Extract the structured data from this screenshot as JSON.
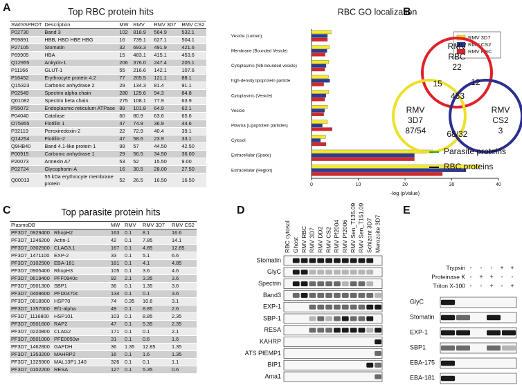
{
  "panel_labels": [
    "A",
    "B",
    "C",
    "D",
    "E"
  ],
  "table_a": {
    "title": "Top RBC protein hits",
    "headers": [
      "SWISSPROT",
      "Description",
      "MW",
      "RMV",
      "RMV 3D7",
      "RMV CS2"
    ],
    "rows": [
      [
        "P02730",
        "Band 3",
        "102",
        "818.9",
        "564.9",
        "532.1"
      ],
      [
        "P69891",
        "HBB, HBD HBE HBG",
        "16",
        "739.1",
        "627.1",
        "504.1"
      ],
      [
        "P27105",
        "Stomatin",
        "32",
        "693.3",
        "491.9",
        "421.6"
      ],
      [
        "P69905",
        "HBA",
        "15",
        "483.1",
        "415.1",
        "453.6"
      ],
      [
        "Q12955",
        "Ankyrin-1",
        "206",
        "376.0",
        "247.4",
        "205.1"
      ],
      [
        "P11166",
        "GLUT-1",
        "55",
        "216.6",
        "142.1",
        "107.6"
      ],
      [
        "P16452",
        "Erythrocyte protein 4.2",
        "77",
        "205.5",
        "121.1",
        "88.1"
      ],
      [
        "Q15323",
        "Carbonic anhydrase 2",
        "29",
        "134.3",
        "81.4",
        "91.1"
      ],
      [
        "P02549",
        "Spectrin alpha chain",
        "280",
        "129.6",
        "94.3",
        "84.8"
      ],
      [
        "Q01082",
        "Spectrin beta chain",
        "275",
        "108.1",
        "77.9",
        "63.9"
      ],
      [
        "P55072",
        "Endoplasmic reticulum ATPase",
        "89",
        "101.8",
        "64.9",
        "62.1"
      ],
      [
        "P04040",
        "Catalase",
        "60",
        "80.9",
        "63.6",
        "65.6"
      ],
      [
        "O75955",
        "Flotillin 1",
        "47",
        "74.9",
        "36.9",
        "44.6"
      ],
      [
        "P32119",
        "Peroxiredoxin-2",
        "22",
        "72.9",
        "40.4",
        "39.1"
      ],
      [
        "Q14254",
        "Flotillin-2",
        "47",
        "58.6",
        "23.9",
        "33.1"
      ],
      [
        "Q9HB40",
        "Band 4.1-like protein 1",
        "99",
        "57",
        "44.50",
        "42.50"
      ],
      [
        "P00915",
        "Carbonic anhydrase 1",
        "29",
        "56.5",
        "34.50",
        "36.00"
      ],
      [
        "P20073",
        "Annexin A7",
        "53",
        "52",
        "15.50",
        "9.00"
      ],
      [
        "P02724",
        "Glycophorin-A",
        "16",
        "30.5",
        "28.00",
        "27.50"
      ],
      [
        "Q00013",
        "55 kDa erythrocyte membrane protein",
        "52",
        "26.5",
        "16.50",
        "16.50"
      ]
    ]
  },
  "chart_data": {
    "type": "hbar",
    "title": "RBC GO localization",
    "x_label": "-log (pValue)",
    "categories": [
      "Vesicle (Lumen)",
      "Membrane (Bounded Vesicle)",
      "Cytoplasmic (Mb-bounded vesicle)",
      "high-density lipoprotein particle",
      "Cytoplasmic (Vesicle)",
      "Vesicle",
      "Plasma (Lipoprotein particles)",
      "Cytosol",
      "Extracellular (Space)",
      "Extracellular (Region)"
    ],
    "series": [
      {
        "name": "RMV 3D7",
        "color": "#f3ea2a",
        "values": [
          4.2,
          3.8,
          3.7,
          3.6,
          3.7,
          3.4,
          3.4,
          3.0,
          26,
          36
        ]
      },
      {
        "name": "RMV CS2",
        "color": "#2e3a96",
        "values": [
          3.4,
          3.3,
          3.1,
          3.9,
          3.1,
          2.8,
          2.3,
          1.9,
          22,
          33
        ]
      },
      {
        "name": "RMV RBC",
        "color": "#d8262c",
        "values": [
          3.4,
          2.9,
          2.8,
          2.6,
          2.8,
          2.6,
          4.4,
          3.1,
          22,
          28
        ]
      }
    ],
    "xlim": [
      0,
      40
    ],
    "xticks": [
      0,
      10,
      20,
      30,
      40
    ],
    "legend": "upper right"
  },
  "venn": {
    "rbc": {
      "lines": [
        "RMV",
        "RBC"
      ],
      "count": "22"
    },
    "p3d7": {
      "lines": [
        "RMV",
        "3D7"
      ],
      "count": "87/",
      "parasite_count": "54"
    },
    "cs2": {
      "lines": [
        "RMV",
        "CS2"
      ],
      "parasite_count": "3"
    },
    "rbc_3d7": "15",
    "all": "453",
    "rbc_cs2": "12",
    "p3d7_cs2": "68/",
    "p3d7_cs2_parasite": "32",
    "legend": [
      "Parasite proteins",
      "RBC proteins"
    ]
  },
  "table_c": {
    "title": "Top parasite protein hits",
    "headers": [
      "PlasmoDB",
      "MW",
      "RMV",
      "RMV 3D7",
      "RMV CS2"
    ],
    "rows": [
      [
        "PF3D7_0929400",
        "RhopH2",
        "163",
        "0.1",
        "8.1",
        "16.6"
      ],
      [
        "PF3D7_1246200",
        "Actin-1",
        "42",
        "0.1",
        "7.85",
        "14.1"
      ],
      [
        "PF3D7_0302500",
        "CLAG3.1",
        "167",
        "0.1",
        "4.85",
        "12.85"
      ],
      [
        "PF3D7_1471100",
        "EXP-2",
        "33",
        "0.1",
        "5.1",
        "6.6"
      ],
      [
        "PF3D7_0102500",
        "EBA-181",
        "181",
        "0.1",
        "4.1",
        "4.85"
      ],
      [
        "PF3D7_0905400",
        "RhopH3",
        "105",
        "0.1",
        "3.6",
        "4.6"
      ],
      [
        "PF3D7_0619400",
        "PFF0940c",
        "92",
        "2.1",
        "3.35",
        "3.6"
      ],
      [
        "PF3D7_0501300",
        "SBP1",
        "36",
        "0.1",
        "1.35",
        "3.6"
      ],
      [
        "PF3D7_0409600",
        "PFD0470c",
        "134",
        "0.1",
        "0.1",
        "3.6"
      ],
      [
        "PF3D7_0818900",
        "HSP70",
        "74",
        "0.35",
        "10.6",
        "3.1"
      ],
      [
        "PF3D7_1357000",
        "Ef1-alpha",
        "49",
        "0.1",
        "8.85",
        "2.6"
      ],
      [
        "PF3D7_1116800",
        "HSP101",
        "103",
        "0.1",
        "8.85",
        "2.35"
      ],
      [
        "PF3D7_0501600",
        "RAP2",
        "47",
        "0.1",
        "5.35",
        "2.35"
      ],
      [
        "PF3D7_0220800",
        "CLAG2",
        "171",
        "0.1",
        "0.1",
        "2.1"
      ],
      [
        "PF3D7_0501000",
        "PFE0050w",
        "31",
        "0.1",
        "0.6",
        "1.6"
      ],
      [
        "PF3D7_1462800",
        "GAPDH",
        "36",
        "1.35",
        "12.85",
        "1.35"
      ],
      [
        "PF3D7_1353200",
        "MAHRP2",
        "16",
        "0.1",
        "1.6",
        "1.35"
      ],
      [
        "PF3D7_1325900",
        "MAL13P1.140",
        "326",
        "0.1",
        "0.1",
        "1.1"
      ],
      [
        "PF3D7_0102200",
        "RESA",
        "127",
        "0.1",
        "5.35",
        "0.6"
      ]
    ]
  },
  "blot_d": {
    "lanes": [
      "RBC cytosol",
      "Ghost",
      "RMV RBC",
      "RMV 3D7",
      "RMV DD2",
      "RMV CS2",
      "RMV Pf2004",
      "RMV Pf2006",
      "RMV Sen_T135.09",
      "RMV Sen_T151.09",
      "Schizont 3D7",
      "Merozoite 3D7"
    ],
    "rows": [
      "Stomatin",
      "GlyC",
      "Spectrin",
      "Band3",
      "EXP-1",
      "SBP-1",
      "RESA",
      "KAHRP",
      "ATS PfEMP1",
      "BIP1",
      "Ama1"
    ]
  },
  "blot_e": {
    "treatments": [
      {
        "name": "Trypsin",
        "signs": [
          "-",
          "-",
          "-",
          "+",
          "+"
        ]
      },
      {
        "name": "Proteinase K",
        "signs": [
          "-",
          "+",
          "+",
          "-",
          "-"
        ]
      },
      {
        "name": "Triton X-100",
        "signs": [
          "-",
          "-",
          "+",
          "-",
          "+"
        ]
      }
    ],
    "rows": [
      "GlyC",
      "Stomatin",
      "EXP-1",
      "SBP1",
      "EBA-175",
      "EBA-181"
    ]
  }
}
